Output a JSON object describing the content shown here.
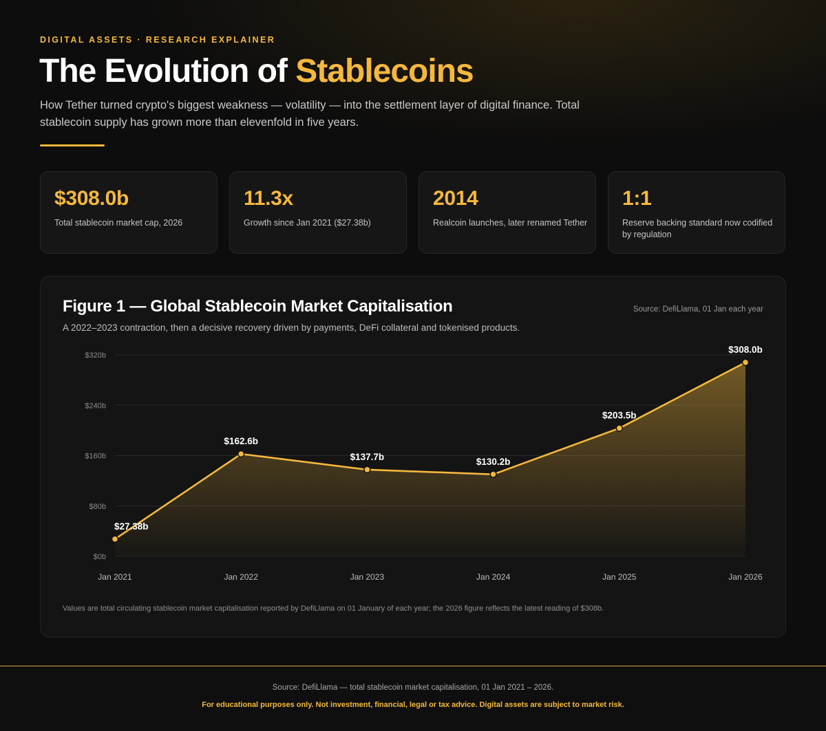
{
  "header": {
    "kicker": "DIGITAL ASSETS · RESEARCH EXPLAINER",
    "title_main": "The Evolution of ",
    "title_accent": "Stablecoins",
    "lede": "How Tether turned crypto's biggest weakness — volatility — into the settlement layer of digital finance. Total stablecoin supply has grown more than elevenfold in five years."
  },
  "stats": [
    {
      "value": "$308.0b",
      "label": "Total stablecoin market cap, 2026"
    },
    {
      "value": "11.3x",
      "label": "Growth since Jan 2021 ($27.38b)"
    },
    {
      "value": "2014",
      "label": "Realcoin launches, later renamed Tether"
    },
    {
      "value": "1:1",
      "label": "Reserve backing standard now codified by regulation"
    }
  ],
  "figure": {
    "title": "Figure 1 — Global Stablecoin Market Capitalisation",
    "source": "Source: DefiLlama, 01 Jan each year",
    "subtitle": "A 2022–2023 contraction, then a decisive recovery driven by payments, DeFi collateral and tokenised products.",
    "note": "Values are total circulating stablecoin market capitalisation reported by DefiLlama on 01 January of each year; the 2026 figure reflects the latest reading of $308b."
  },
  "chart_data": {
    "type": "area",
    "title": "Figure 1 — Global Stablecoin Market Capitalisation",
    "xlabel": "",
    "ylabel": "",
    "categories": [
      "Jan 2021",
      "Jan 2022",
      "Jan 2023",
      "Jan 2024",
      "Jan 2025",
      "Jan 2026"
    ],
    "values": [
      27.38,
      162.6,
      137.7,
      130.2,
      203.5,
      308.0
    ],
    "data_labels": [
      "$27.38b",
      "$162.6b",
      "$137.7b",
      "$130.2b",
      "$203.5b",
      "$308.0b"
    ],
    "ylim": [
      0,
      320
    ],
    "yticks": [
      0,
      80,
      160,
      240,
      320
    ],
    "ytick_labels": [
      "$0b",
      "$80b",
      "$160b",
      "$240b",
      "$320b"
    ],
    "grid": true,
    "legend": "none",
    "colors": {
      "line": "#f5b83d",
      "fill": "#f5b83d",
      "grid": "#2a2a2a"
    }
  },
  "footer": {
    "source": "Source: DefiLlama — total stablecoin market capitalisation, 01 Jan 2021 – 2026.",
    "disclaimer": "For educational purposes only. Not investment, financial, legal or tax advice. Digital assets are subject to market risk."
  }
}
